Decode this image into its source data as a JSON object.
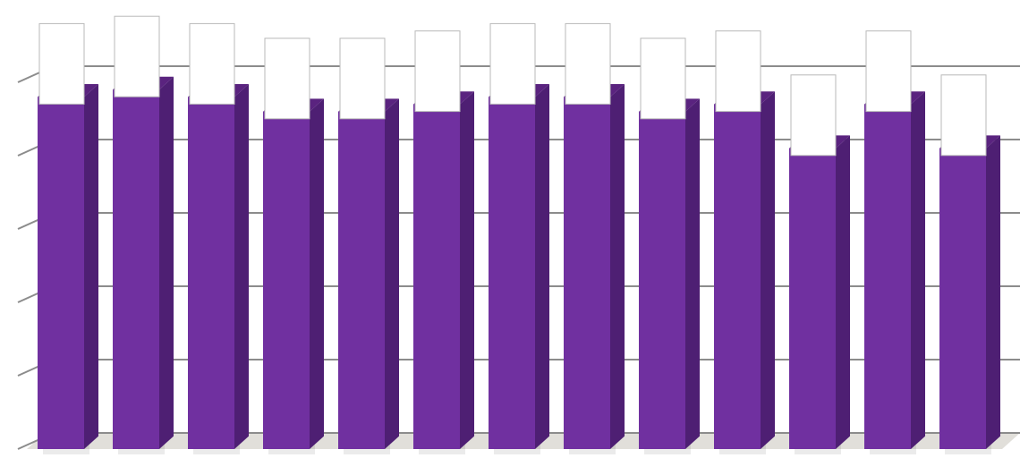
{
  "chart_data": {
    "type": "bar",
    "categories": [
      "",
      "",
      "",
      "",
      "",
      "",
      "",
      "",
      "",
      "",
      "",
      "",
      ""
    ],
    "values": [
      4.8,
      4.9,
      4.8,
      4.6,
      4.6,
      4.7,
      4.8,
      4.8,
      4.6,
      4.7,
      4.1,
      4.7,
      4.1
    ],
    "ylim": [
      0,
      5
    ],
    "grid": true,
    "legend": "none",
    "colors": {
      "bar_front": "#7030a0",
      "bar_side": "#4e1f73",
      "bar_top": "#5a237f",
      "grid": "#8c8c8c",
      "floor": "#e1dfda",
      "label_box_stroke": "#b8b8b8"
    }
  }
}
